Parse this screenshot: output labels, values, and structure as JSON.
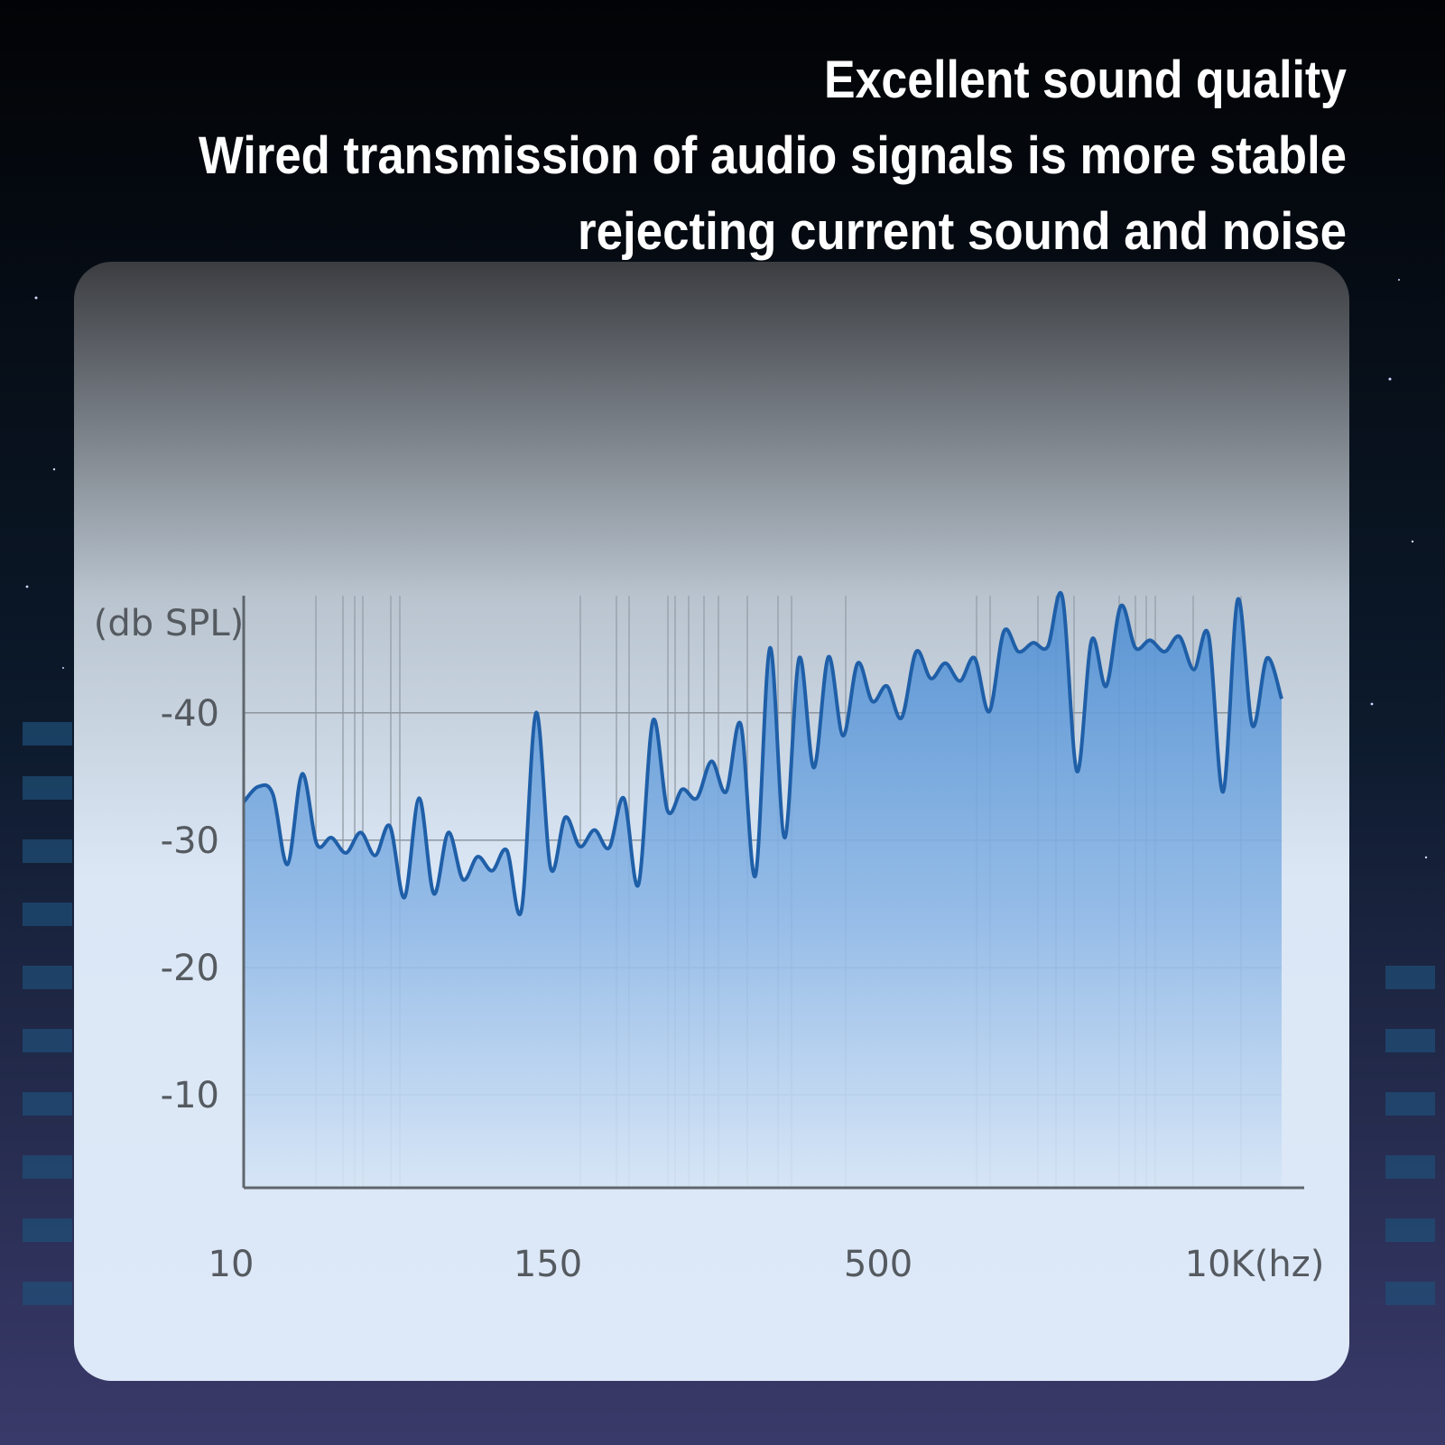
{
  "chart_data": {
    "type": "line",
    "title_lines": [
      "Excellent sound quality",
      "Wired transmission of audio signals is more stable",
      "rejecting current sound and noise"
    ],
    "y_label": "(db SPL)",
    "x_labels": [
      "10",
      "150",
      "500",
      "10K(hz)"
    ],
    "values": [
      -33.0,
      -34.2,
      -33.6,
      -28.1,
      -35.2,
      -29.7,
      -30.2,
      -29.0,
      -30.6,
      -28.8,
      -31.1,
      -25.5,
      -33.3,
      -25.8,
      -30.6,
      -26.9,
      -28.7,
      -27.6,
      -29.2,
      -24.5,
      -40.0,
      -27.8,
      -31.8,
      -29.5,
      -30.8,
      -29.4,
      -33.3,
      -26.5,
      -39.4,
      -32.3,
      -34.0,
      -33.3,
      -36.2,
      -33.8,
      -39.1,
      -27.2,
      -45.1,
      -30.2,
      -44.3,
      -35.7,
      -44.4,
      -38.2,
      -43.9,
      -40.9,
      -42.1,
      -39.6,
      -44.8,
      -42.7,
      -43.9,
      -42.5,
      -44.3,
      -40.1,
      -46.4,
      -44.8,
      -45.5,
      -45.2,
      -49.1,
      -35.4,
      -45.7,
      -42.1,
      -48.4,
      -45.1,
      -45.7,
      -44.8,
      -46.0,
      -43.4,
      -46.1,
      -33.8,
      -48.9,
      -39.0,
      -44.3,
      -41.1
    ],
    "color": "#1f5fa8",
    "ylim": [
      -2.7,
      -49.2
    ],
    "yticks": [
      -40,
      -30,
      -20,
      -10
    ],
    "grid": true
  }
}
